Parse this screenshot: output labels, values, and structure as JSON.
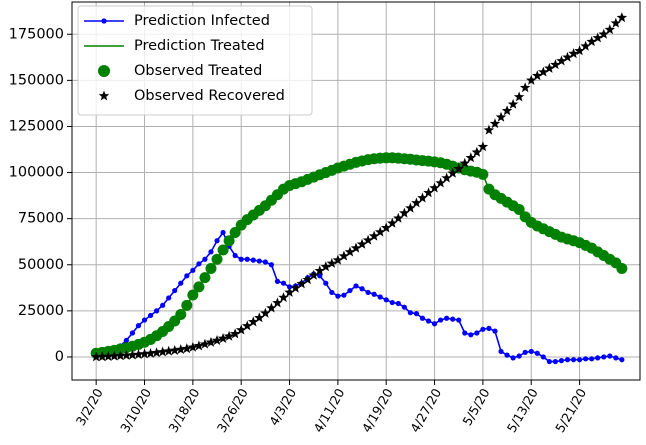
{
  "chart_data": {
    "type": "line",
    "x": [
      "3/2/20",
      "3/3/20",
      "3/4/20",
      "3/5/20",
      "3/6/20",
      "3/7/20",
      "3/8/20",
      "3/9/20",
      "3/10/20",
      "3/11/20",
      "3/12/20",
      "3/13/20",
      "3/14/20",
      "3/15/20",
      "3/16/20",
      "3/17/20",
      "3/18/20",
      "3/19/20",
      "3/20/20",
      "3/21/20",
      "3/22/20",
      "3/23/20",
      "3/24/20",
      "3/25/20",
      "3/26/20",
      "3/27/20",
      "3/28/20",
      "3/29/20",
      "3/30/20",
      "3/31/20",
      "4/1/20",
      "4/2/20",
      "4/3/20",
      "4/4/20",
      "4/5/20",
      "4/6/20",
      "4/7/20",
      "4/8/20",
      "4/9/20",
      "4/10/20",
      "4/11/20",
      "4/12/20",
      "4/13/20",
      "4/14/20",
      "4/15/20",
      "4/16/20",
      "4/17/20",
      "4/18/20",
      "4/19/20",
      "4/20/20",
      "4/21/20",
      "4/22/20",
      "4/23/20",
      "4/24/20",
      "4/25/20",
      "4/26/20",
      "4/27/20",
      "4/28/20",
      "4/29/20",
      "4/30/20",
      "5/1/20",
      "5/2/20",
      "5/3/20",
      "5/4/20",
      "5/5/20",
      "5/6/20",
      "5/7/20",
      "5/8/20",
      "5/9/20",
      "5/10/20",
      "5/11/20",
      "5/12/20",
      "5/13/20",
      "5/14/20",
      "5/15/20",
      "5/16/20",
      "5/17/20",
      "5/18/20",
      "5/19/20",
      "5/20/20",
      "5/21/20",
      "5/22/20",
      "5/23/20",
      "5/24/20",
      "5/25/20",
      "5/26/20",
      "5/27/20",
      "5/28/20"
    ],
    "xlim": [
      "2/27/20",
      "5/31/20"
    ],
    "xticks": [
      "3/2/20",
      "3/10/20",
      "3/18/20",
      "3/26/20",
      "4/3/20",
      "4/11/20",
      "4/19/20",
      "4/27/20",
      "5/5/20",
      "5/13/20",
      "5/21/20"
    ],
    "ylim": [
      -12500,
      192500
    ],
    "yticks": [
      0,
      25000,
      50000,
      75000,
      100000,
      125000,
      150000,
      175000
    ],
    "grid": true,
    "legend": "upper left",
    "series": [
      {
        "name": "Prediction Infected",
        "color": "#0000ff",
        "linestyle": "-",
        "marker": "dot",
        "values": [
          1000,
          1500,
          2500,
          4000,
          6000,
          9000,
          13000,
          17000,
          20000,
          22500,
          25000,
          28000,
          32000,
          36000,
          40000,
          44000,
          47000,
          50500,
          53000,
          57000,
          63000,
          67500,
          60000,
          55000,
          53000,
          53000,
          52500,
          52000,
          51500,
          50000,
          41000,
          40000,
          38000,
          38500,
          40000,
          43000,
          45000,
          44000,
          40000,
          35000,
          33000,
          33500,
          36000,
          38500,
          37000,
          35000,
          34000,
          32500,
          31000,
          29500,
          29000,
          27000,
          24000,
          23500,
          21000,
          19500,
          18000,
          20000,
          21000,
          20500,
          20000,
          13000,
          12000,
          13000,
          15000,
          15500,
          14000,
          3000,
          1000,
          -500,
          500,
          2500,
          3000,
          2000,
          0,
          -2500,
          -2500,
          -2000,
          -1500,
          -1500,
          -1500,
          -1000,
          -1000,
          -500,
          0,
          500,
          -500,
          -1500
        ]
      },
      {
        "name": "Prediction Treated",
        "color": "#008000",
        "linestyle": "-",
        "marker": null,
        "values": [
          2000,
          2500,
          3000,
          3600,
          4300,
          5000,
          5800,
          6800,
          8000,
          9500,
          11500,
          13800,
          16500,
          19500,
          23000,
          28000,
          33600,
          38000,
          43000,
          48000,
          53000,
          58000,
          63000,
          67500,
          71500,
          74500,
          77000,
          79500,
          82000,
          85000,
          88000,
          91000,
          93000,
          94000,
          95000,
          96300,
          97500,
          98800,
          100000,
          101200,
          102500,
          103500,
          104500,
          105500,
          106300,
          107000,
          107500,
          107800,
          108000,
          108000,
          107800,
          107500,
          107200,
          106800,
          106500,
          106200,
          105800,
          105300,
          104500,
          103500,
          102500,
          101500,
          100800,
          100200,
          99000,
          91000,
          88000,
          86000,
          84000,
          82000,
          80000,
          76000,
          73000,
          71000,
          69500,
          68000,
          66500,
          65000,
          64000,
          63000,
          62000,
          60500,
          59000,
          57000,
          55000,
          53000,
          51000,
          48000
        ]
      },
      {
        "name": "Observed Treated",
        "color": "#008000",
        "linestyle": null,
        "marker": "circle",
        "values": [
          2000,
          2500,
          3000,
          3600,
          4300,
          5000,
          5800,
          6800,
          8000,
          9500,
          11500,
          13800,
          16500,
          19500,
          23000,
          28000,
          33600,
          38000,
          43000,
          48000,
          53000,
          58000,
          63000,
          67500,
          71500,
          74500,
          77000,
          79500,
          82000,
          85000,
          88000,
          91000,
          93000,
          94000,
          95000,
          96300,
          97500,
          98800,
          100000,
          101200,
          102500,
          103500,
          104500,
          105500,
          106300,
          107000,
          107500,
          107800,
          108000,
          108000,
          107800,
          107500,
          107200,
          106800,
          106500,
          106200,
          105800,
          105300,
          104500,
          103500,
          102500,
          101500,
          100800,
          100200,
          99000,
          91000,
          88000,
          86000,
          84000,
          82000,
          80000,
          76000,
          73000,
          71000,
          69500,
          68000,
          66500,
          65000,
          64000,
          63000,
          62000,
          60500,
          59000,
          57000,
          55000,
          53000,
          51000,
          48000
        ]
      },
      {
        "name": "Observed Recovered",
        "color": "#000000",
        "linestyle": null,
        "marker": "star",
        "values": [
          0,
          100,
          200,
          400,
          600,
          800,
          1000,
          1300,
          1600,
          1900,
          2300,
          2700,
          3100,
          3500,
          4000,
          4500,
          5200,
          6000,
          6900,
          7900,
          8900,
          10000,
          11200,
          12500,
          14600,
          16800,
          19000,
          21200,
          23700,
          26500,
          29300,
          32200,
          35000,
          37300,
          39600,
          41900,
          44300,
          46700,
          48900,
          50700,
          52500,
          54700,
          56900,
          59000,
          61100,
          63300,
          65500,
          67700,
          70000,
          72500,
          75200,
          78000,
          80700,
          83500,
          86200,
          89000,
          91600,
          94300,
          97000,
          99600,
          102000,
          105000,
          108000,
          111000,
          114000,
          123000,
          126500,
          130000,
          133500,
          137000,
          141000,
          146000,
          150000,
          152500,
          154500,
          156500,
          158500,
          160500,
          162500,
          164500,
          166000,
          168500,
          171000,
          173000,
          175000,
          177500,
          181000,
          184000
        ]
      }
    ]
  }
}
